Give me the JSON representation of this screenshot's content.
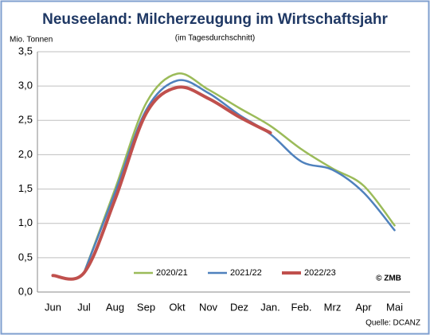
{
  "chart_data": {
    "type": "line",
    "title": "Neuseeland: Milcherzeugung im Wirtschaftsjahr",
    "subtitle": "(im Tagesdurchschnitt)",
    "y_label": "Mio. Tonnen",
    "annotations": [
      "© ZMB",
      "Quelle: DCANZ"
    ],
    "categories": [
      "Jun",
      "Jul",
      "Aug",
      "Sep",
      "Okt",
      "Nov",
      "Dez",
      "Jan.",
      "Feb.",
      "Mrz",
      "Apr",
      "Mai"
    ],
    "series": [
      {
        "name": "2020/21",
        "color": "#9bbb59",
        "values": [
          null,
          0.28,
          1.5,
          2.75,
          3.18,
          2.95,
          2.68,
          2.42,
          2.08,
          1.8,
          1.55,
          0.97
        ]
      },
      {
        "name": "2021/22",
        "color": "#4f81bd",
        "values": [
          null,
          0.28,
          1.45,
          2.65,
          3.08,
          2.9,
          2.58,
          2.3,
          1.9,
          1.78,
          1.45,
          0.9
        ]
      },
      {
        "name": "2022/23",
        "color": "#c0504d",
        "values": [
          0.24,
          0.28,
          1.35,
          2.6,
          2.98,
          2.82,
          2.55,
          2.32,
          null,
          null,
          null,
          null
        ]
      }
    ],
    "ylim": [
      0,
      3.5
    ],
    "yticks": [
      {
        "value": 0,
        "label": "0,0"
      },
      {
        "value": 0.5,
        "label": "0,5"
      },
      {
        "value": 1,
        "label": "1,0"
      },
      {
        "value": 1.5,
        "label": "1,5"
      },
      {
        "value": 2,
        "label": "2,0"
      },
      {
        "value": 2.5,
        "label": "2,5"
      },
      {
        "value": 3,
        "label": "3,0"
      },
      {
        "value": 3.5,
        "label": "3,5"
      }
    ],
    "grid": true,
    "legend": "bottom"
  }
}
